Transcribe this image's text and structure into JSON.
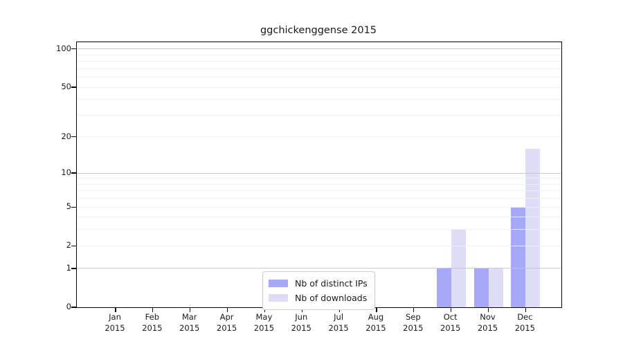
{
  "title": "ggchickenggense 2015",
  "colors": {
    "distinct_ips": "#a8a8f8",
    "downloads": "#ddddf8",
    "major_grid": "#c9c9c9",
    "minor_grid": "#f0f0f0",
    "axis": "#000000",
    "legend_border": "#cccccc"
  },
  "legend": {
    "items": [
      {
        "label": "Nb of distinct IPs",
        "color_key": "distinct_ips"
      },
      {
        "label": "Nb of downloads",
        "color_key": "downloads"
      }
    ]
  },
  "y_axis": {
    "scale": "log1p",
    "ticks": [
      100,
      50,
      20,
      10,
      5,
      2,
      1,
      0
    ],
    "major_gridlines": [
      1,
      10,
      100
    ],
    "minor_gridlines": [
      2,
      3,
      4,
      5,
      6,
      7,
      8,
      9,
      20,
      30,
      40,
      50,
      60,
      70,
      80,
      90
    ],
    "top_value": 113
  },
  "x_axis": {
    "months": [
      "Jan",
      "Feb",
      "Mar",
      "Apr",
      "May",
      "Jun",
      "Jul",
      "Aug",
      "Sep",
      "Oct",
      "Nov",
      "Dec"
    ],
    "year": "2015"
  },
  "chart_data": {
    "type": "bar",
    "title": "ggchickenggense 2015",
    "categories": [
      "Jan 2015",
      "Feb 2015",
      "Mar 2015",
      "Apr 2015",
      "May 2015",
      "Jun 2015",
      "Jul 2015",
      "Aug 2015",
      "Sep 2015",
      "Oct 2015",
      "Nov 2015",
      "Dec 2015"
    ],
    "series": [
      {
        "name": "Nb of distinct IPs",
        "color": "#a8a8f8",
        "values": [
          0,
          0,
          0,
          0,
          0,
          0,
          0,
          0,
          0,
          1,
          1,
          5
        ]
      },
      {
        "name": "Nb of downloads",
        "color": "#ddddf8",
        "values": [
          0,
          0,
          0,
          0,
          0,
          0,
          0,
          0,
          0,
          3,
          1,
          16
        ]
      }
    ],
    "xlabel": "",
    "ylabel": "",
    "yscale": "log1p",
    "ylim": [
      0,
      113
    ],
    "ytick_values": [
      100,
      50,
      20,
      10,
      5,
      2,
      1,
      0
    ],
    "grid": "horizontal major+minor, drawn over bars",
    "legend_position": "inside lower-center-left"
  }
}
